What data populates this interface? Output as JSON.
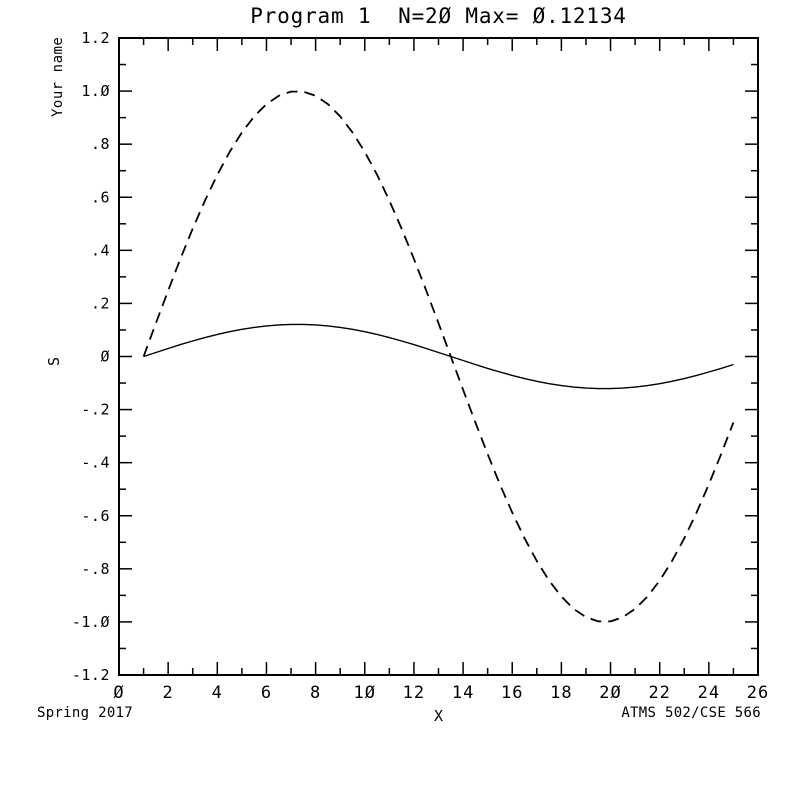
{
  "window": {
    "background": "#ffffff",
    "ink": "#000000"
  },
  "title": {
    "text": "Program 1  N=2Ø Max= Ø.12134"
  },
  "corner_labels": {
    "top_left_vertical": "Your name",
    "bottom_left": "Spring 2017",
    "bottom_right": "ATMS 502/CSE 566"
  },
  "chart_data": {
    "type": "line",
    "title": "Program 1  N=2Ø Max= Ø.12134",
    "xlabel": "X",
    "ylabel": "S",
    "xlim": [
      0,
      26
    ],
    "ylim": [
      -1.2,
      1.2
    ],
    "grid": false,
    "legend": "none",
    "x_major_ticks": [
      0,
      2,
      4,
      6,
      8,
      10,
      12,
      14,
      16,
      18,
      20,
      22,
      24,
      26
    ],
    "x_tick_labels": [
      "Ø",
      "2",
      "4",
      "6",
      "8",
      "1Ø",
      "12",
      "14",
      "16",
      "18",
      "2Ø",
      "22",
      "24",
      "26"
    ],
    "x_minor_step": 1,
    "y_major_ticks": [
      -1.2,
      -1.0,
      -0.8,
      -0.6,
      -0.4,
      -0.2,
      0,
      0.2,
      0.4,
      0.6,
      0.8,
      1.0,
      1.2
    ],
    "y_tick_labels": [
      "-1.2",
      "-1.Ø",
      "-.8",
      "-.6",
      "-.4",
      "-.2",
      "Ø",
      ".2",
      ".4",
      ".6",
      ".8",
      "1.Ø",
      "1.2"
    ],
    "y_minor_step": 0.1,
    "x": [
      1,
      1.5,
      2,
      2.5,
      3,
      3.5,
      4,
      4.5,
      5,
      5.5,
      6,
      6.5,
      7,
      7.5,
      8,
      8.5,
      9,
      9.5,
      10,
      10.5,
      11,
      11.5,
      12,
      12.5,
      13,
      13.5,
      14,
      14.5,
      15,
      15.5,
      16,
      16.5,
      17,
      17.5,
      18,
      18.5,
      19,
      19.5,
      20,
      20.5,
      21,
      21.5,
      22,
      22.5,
      23,
      23.5,
      24,
      24.5,
      25
    ],
    "series": [
      {
        "name": "solid-curve",
        "line_style": "solid",
        "color": "#000000",
        "amplitude": 0.12134,
        "values": [
          0.0,
          0.0152,
          0.0302,
          0.0447,
          0.0585,
          0.0713,
          0.0831,
          0.0935,
          0.1024,
          0.1098,
          0.1154,
          0.1192,
          0.1211,
          0.1211,
          0.1192,
          0.1154,
          0.1098,
          0.1024,
          0.0935,
          0.0831,
          0.0713,
          0.0585,
          0.0447,
          0.0302,
          0.0152,
          0.0,
          -0.0152,
          -0.0302,
          -0.0447,
          -0.0585,
          -0.0713,
          -0.0831,
          -0.0935,
          -0.1024,
          -0.1098,
          -0.1154,
          -0.1192,
          -0.1211,
          -0.1211,
          -0.1192,
          -0.1154,
          -0.1098,
          -0.1024,
          -0.0935,
          -0.0831,
          -0.0713,
          -0.0585,
          -0.0447,
          -0.0302
        ]
      },
      {
        "name": "dashed-curve",
        "line_style": "dashed",
        "color": "#000000",
        "amplitude": 1.0,
        "values": [
          0.0,
          0.1253,
          0.2487,
          0.3681,
          0.4818,
          0.5878,
          0.6845,
          0.7705,
          0.8443,
          0.9048,
          0.9511,
          0.9823,
          0.998,
          0.998,
          0.9823,
          0.9511,
          0.9048,
          0.8443,
          0.7705,
          0.6845,
          0.5878,
          0.4818,
          0.3681,
          0.2487,
          0.1253,
          0.0,
          -0.1253,
          -0.2487,
          -0.3681,
          -0.4818,
          -0.5878,
          -0.6845,
          -0.7705,
          -0.8443,
          -0.9048,
          -0.9511,
          -0.9823,
          -0.998,
          -0.998,
          -0.9823,
          -0.9511,
          -0.9048,
          -0.8443,
          -0.7705,
          -0.6845,
          -0.5878,
          -0.4818,
          -0.3681,
          -0.2487
        ]
      }
    ]
  }
}
